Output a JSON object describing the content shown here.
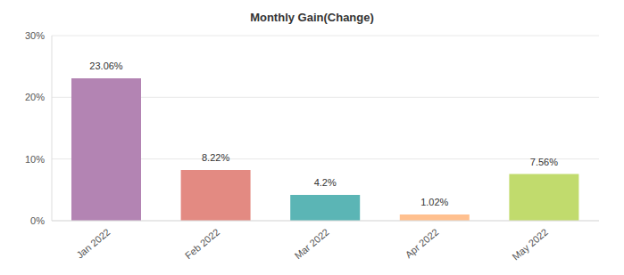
{
  "chart_data": {
    "type": "bar",
    "title": "Monthly Gain(Change)",
    "categories": [
      "Jan 2022",
      "Feb 2022",
      "Mar 2022",
      "Apr 2022",
      "May 2022"
    ],
    "values": [
      23.06,
      8.22,
      4.2,
      1.02,
      7.56
    ],
    "value_labels": [
      "23.06%",
      "8.22%",
      "4.2%",
      "1.02%",
      "7.56%"
    ],
    "colors": [
      "#b384b3",
      "#e38a82",
      "#5bb5b5",
      "#ffc08f",
      "#c1db6d"
    ],
    "ylim": [
      0,
      30
    ],
    "yticks": [
      {
        "value": 0,
        "label": "0%"
      },
      {
        "value": 10,
        "label": "10%"
      },
      {
        "value": 20,
        "label": "20%"
      },
      {
        "value": 30,
        "label": "30%"
      }
    ],
    "grid": true,
    "data_labels": true
  }
}
